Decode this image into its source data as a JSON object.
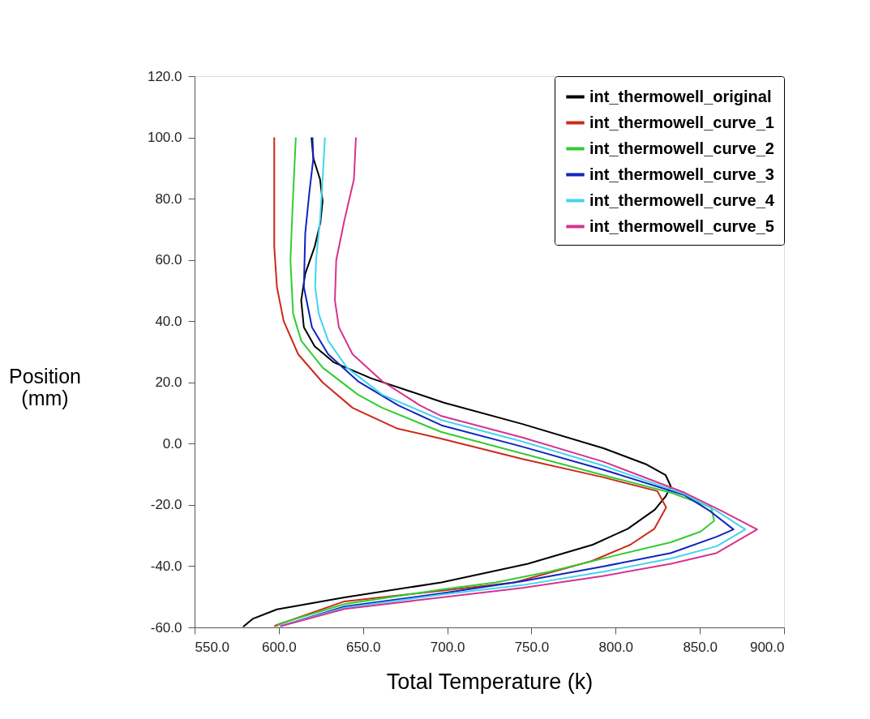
{
  "chart_data": {
    "type": "line",
    "xlabel": "Total Temperature (k)",
    "ylabel": "Position (mm)",
    "xlim": [
      550,
      900
    ],
    "ylim": [
      -60,
      120
    ],
    "xticks": [
      {
        "value": 550,
        "label": "550.0"
      },
      {
        "value": 600,
        "label": "600.0"
      },
      {
        "value": 650,
        "label": "650.0"
      },
      {
        "value": 700,
        "label": "700.0"
      },
      {
        "value": 750,
        "label": "750.0"
      },
      {
        "value": 800,
        "label": "800.0"
      },
      {
        "value": 850,
        "label": "850.0"
      },
      {
        "value": 900,
        "label": "900.0"
      }
    ],
    "yticks": [
      {
        "value": -60,
        "label": "-60.0"
      },
      {
        "value": -40,
        "label": "-40.0"
      },
      {
        "value": -20,
        "label": "-20.0"
      },
      {
        "value": 0,
        "label": "0.0"
      },
      {
        "value": 20,
        "label": "20.0"
      },
      {
        "value": 40,
        "label": "40.0"
      },
      {
        "value": 60,
        "label": "60.0"
      },
      {
        "value": 80,
        "label": "80.0"
      },
      {
        "value": 100,
        "label": "100.0"
      },
      {
        "value": 120,
        "label": "120.0"
      }
    ],
    "grid": false,
    "legend": "top right",
    "marker": "none",
    "line_style": "solid",
    "series": [
      {
        "name": "int_thermowell_original",
        "color": "#000000",
        "x": [
          578.8,
          584.5,
          598.9,
          639,
          696.6,
          747.9,
          786.4,
          807.2,
          823.2,
          829.6,
          832.8,
          829.7,
          818.4,
          792.8,
          744.7,
          698,
          679,
          655,
          632.5,
          621.3,
          614.9,
          613.3,
          615.7,
          621.3,
          624.7,
          626,
          624.5,
          620.5,
          619.4
        ],
        "values": [
          -59.8,
          -57.2,
          -54.1,
          -50.2,
          -45.3,
          -39.2,
          -33,
          -27.8,
          -21.6,
          -17.3,
          -14,
          -10.3,
          -6.8,
          -1.5,
          6.4,
          13.4,
          16.9,
          21.3,
          26.6,
          31.8,
          38,
          46.8,
          55.5,
          64.3,
          72.2,
          79.2,
          86.3,
          93.2,
          100
        ]
      },
      {
        "name": "int_thermowell_curve_1",
        "color": "#cc2a1a",
        "x": [
          597.5,
          598,
          639,
          696.6,
          740,
          786,
          808.7,
          823,
          830,
          824.8,
          792.8,
          744.7,
          696.6,
          670,
          643.8,
          626,
          611.5,
          602.9,
          598.9,
          597.3,
          597.3
        ],
        "values": [
          -59.8,
          -59.4,
          -51.5,
          -48,
          -45.3,
          -38.3,
          -33,
          -27.8,
          -20.8,
          -15.5,
          -11,
          -5,
          1.6,
          5,
          11.7,
          20,
          29.2,
          40,
          51.1,
          64.3,
          100
        ]
      },
      {
        "name": "int_thermowell_curve_2",
        "color": "#33cc33",
        "x": [
          599,
          599.7,
          639,
          696.6,
          728.7,
          760.7,
          799.2,
          832.8,
          850.5,
          858.5,
          856.7,
          832.8,
          792.8,
          744.7,
          696.6,
          661.4,
          647,
          626.1,
          613.3,
          608.5,
          606.9,
          608.2,
          610.1
        ],
        "values": [
          -59.8,
          -58.9,
          -52.4,
          -47.6,
          -45.3,
          -41.8,
          -36.6,
          -32.2,
          -28.7,
          -25.2,
          -20.8,
          -16,
          -10.3,
          -3.2,
          3.8,
          11.7,
          16,
          24.8,
          33.6,
          42.4,
          60,
          77.4,
          100
        ]
      },
      {
        "name": "int_thermowell_curve_3",
        "color": "#1024c0",
        "x": [
          600.9,
          639,
          696.6,
          744.7,
          792.8,
          832.8,
          860,
          870,
          856,
          840.9,
          792.8,
          744.7,
          696.6,
          671,
          647,
          629.3,
          619.7,
          614.9,
          615.7,
          618.1,
          620.5,
          620
        ],
        "values": [
          -59.6,
          -53.2,
          -48.9,
          -44.9,
          -40.1,
          -35.7,
          -30.4,
          -28,
          -22,
          -16.8,
          -8.5,
          -1,
          6,
          12.5,
          20.4,
          29.2,
          38,
          51.1,
          68.7,
          81.8,
          93.2,
          100
        ]
      },
      {
        "name": "int_thermowell_curve_4",
        "color": "#44d4f0",
        "x": [
          600.5,
          639,
          696.6,
          744.7,
          792.8,
          832.8,
          860,
          877,
          860,
          841,
          792.8,
          744.7,
          696.6,
          661.4,
          640.5,
          629.3,
          623.7,
          621.6,
          622.1,
          624.5,
          626,
          627.4
        ],
        "values": [
          -59.6,
          -53.6,
          -49.3,
          -46.2,
          -41.8,
          -37.5,
          -33.5,
          -28,
          -22,
          -16.5,
          -7.2,
          0.7,
          7.7,
          16,
          24.8,
          33.6,
          42.4,
          51.1,
          59.9,
          73.1,
          86.3,
          100
        ]
      },
      {
        "name": "int_thermowell_curve_5",
        "color": "#d6338f",
        "x": [
          601,
          639,
          696.6,
          744.7,
          792.8,
          832.8,
          860,
          884,
          863,
          840.9,
          792.8,
          744.7,
          696.6,
          683.8,
          661.4,
          643.8,
          635.7,
          633.3,
          634.1,
          639,
          644.6,
          645.8
        ],
        "values": [
          -59.6,
          -54,
          -50.2,
          -47.1,
          -43.2,
          -39.2,
          -35.7,
          -28,
          -22,
          -16,
          -5.9,
          2,
          9,
          12.5,
          20.4,
          29.2,
          38,
          46.8,
          59.9,
          73.1,
          86.3,
          100
        ]
      }
    ]
  }
}
